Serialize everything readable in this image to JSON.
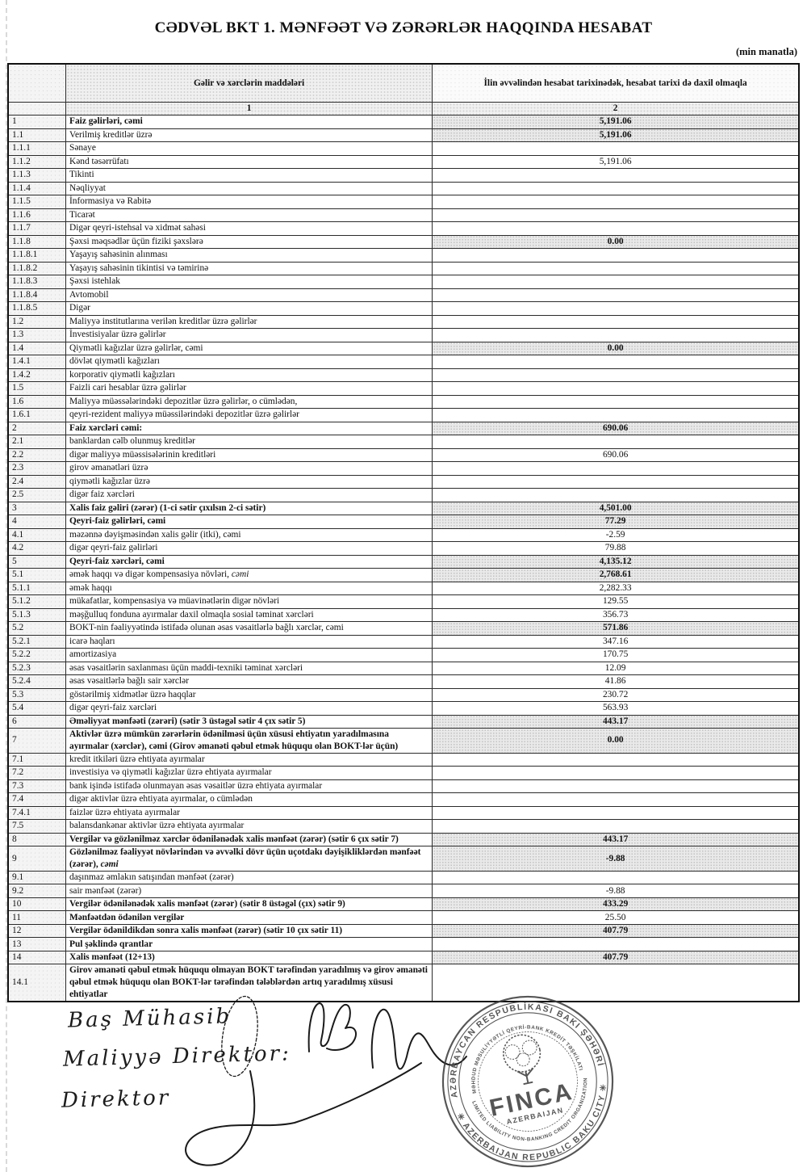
{
  "page": {
    "title": "CƏDVƏL BKT 1. MƏNFƏƏT VƏ ZƏRƏRLƏR HAQQINDA HESABAT",
    "unit_note": "(min manatla)"
  },
  "table": {
    "col1_header": "Gəlir və xərclərin maddələri",
    "col2_header": "İlin əvvəlindən hesabat tarixinədək, hesabat tarixi də daxil olmaqla",
    "col1_index": "1",
    "col2_index": "2",
    "rows": [
      {
        "num": "1",
        "label": "Faiz gəlirləri, cəmi",
        "value": "5,191.06",
        "b": true,
        "sh": true
      },
      {
        "num": "1.1",
        "label": "Verilmiş kreditlər üzrə",
        "value": "5,191.06",
        "sh": true
      },
      {
        "num": "1.1.1",
        "label": "Sənaye",
        "value": ""
      },
      {
        "num": "1.1.2",
        "label": "Kənd təsərrüfatı",
        "value": "5,191.06"
      },
      {
        "num": "1.1.3",
        "label": "Tikinti",
        "value": ""
      },
      {
        "num": "1.1.4",
        "label": "Nəqliyyat",
        "value": ""
      },
      {
        "num": "1.1.5",
        "label": "İnformasiya və Rabitə",
        "value": ""
      },
      {
        "num": "1.1.6",
        "label": "Ticarət",
        "value": ""
      },
      {
        "num": "1.1.7",
        "label": "Digər qeyri-istehsal və xidmət sahəsi",
        "value": ""
      },
      {
        "num": "1.1.8",
        "label": "Şəxsi məqsədlər üçün fiziki şəxslərə",
        "value": "0.00",
        "sh": true
      },
      {
        "num": "1.1.8.1",
        "label": "Yaşayış sahəsinin alınması",
        "value": ""
      },
      {
        "num": "1.1.8.2",
        "label": "Yaşayış sahəsinin tikintisi və təmirinə",
        "value": ""
      },
      {
        "num": "1.1.8.3",
        "label": "Şəxsi istehlak",
        "value": ""
      },
      {
        "num": "1.1.8.4",
        "label": "Avtomobil",
        "value": ""
      },
      {
        "num": "1.1.8.5",
        "label": "Digər",
        "value": ""
      },
      {
        "num": "1.2",
        "label": "Maliyyə institutlarına verilən kreditlər üzrə gəlirlər",
        "value": ""
      },
      {
        "num": "1.3",
        "label": "İnvestisiyalar üzrə gəlirlər",
        "value": ""
      },
      {
        "num": "1.4",
        "label": "Qiymətli kağızlar üzrə gəlirlər, cəmi",
        "value": "0.00",
        "sh": true
      },
      {
        "num": "1.4.1",
        "label": "dövlət qiymətli kağızları",
        "value": ""
      },
      {
        "num": "1.4.2",
        "label": "korporativ qiymətli kağızları",
        "value": ""
      },
      {
        "num": "1.5",
        "label": "Faizli cari hesablar üzrə gəlirlər",
        "value": ""
      },
      {
        "num": "1.6",
        "label": "Maliyyə müəssələrindəki depozitlər üzrə gəlirlər, o cümlədən,",
        "value": ""
      },
      {
        "num": "1.6.1",
        "label": "qeyri-rezident maliyyə müəssilərindəki depozitlər üzrə gəlirlər",
        "value": ""
      },
      {
        "num": "2",
        "label": "Faiz xərcləri cəmi:",
        "value": "690.06",
        "b": true,
        "sh": true
      },
      {
        "num": "2.1",
        "label": "banklardan cəlb olunmuş kreditlər",
        "value": ""
      },
      {
        "num": "2.2",
        "label": "digər maliyyə müəssisələrinin kreditləri",
        "value": "690.06"
      },
      {
        "num": "2.3",
        "label": "girov əmanətləri üzrə",
        "value": ""
      },
      {
        "num": "2.4",
        "label": "qiymətli kağızlar üzrə",
        "value": ""
      },
      {
        "num": "2.5",
        "label": "digər faiz xərcləri",
        "value": ""
      },
      {
        "num": "3",
        "label": "Xalis faiz gəliri (zərər) (1-ci sətir çıxılsın 2-ci sətir)",
        "value": "4,501.00",
        "b": true,
        "sh": true
      },
      {
        "num": "4",
        "label": "Qeyri-faiz gəlirləri, cəmi",
        "value": "77.29",
        "b": true,
        "sh": true
      },
      {
        "num": "4.1",
        "label": "məzənnə dəyişməsindən xalis gəlir (itki), cəmi",
        "value": "-2.59"
      },
      {
        "num": "4.2",
        "label": "digər qeyri-faiz gəlirləri",
        "value": "79.88"
      },
      {
        "num": "5",
        "label": "Qeyri-faiz xərcləri, cəmi",
        "value": "4,135.12",
        "b": true,
        "sh": true
      },
      {
        "num": "5.1",
        "label": "əmək haqqı və digər kompensasiya növləri, ",
        "em": "cəmi",
        "value": "2,768.61",
        "sh": true
      },
      {
        "num": "5.1.1",
        "label": "əmək haqqı",
        "value": "2,282.33"
      },
      {
        "num": "5.1.2",
        "label": "mükafatlar, kompensasiya və müavinətlərin digər növləri",
        "value": "129.55"
      },
      {
        "num": "5.1.3",
        "label": "məşğulluq fonduna ayırmalar daxil olmaqla sosial təminat xərcləri",
        "value": "356.73"
      },
      {
        "num": "5.2",
        "label": "BOKT-nin fəaliyyətində istifadə olunan əsas vəsaitlərlə bağlı xərclər, cəmi",
        "value": "571.86",
        "sh": true
      },
      {
        "num": "5.2.1",
        "label": "icarə haqları",
        "value": "347.16"
      },
      {
        "num": "5.2.2",
        "label": "amortizasiya",
        "value": "170.75"
      },
      {
        "num": "5.2.3",
        "label": "əsas vəsaitlərin saxlanması üçün maddi-texniki təminat xərcləri",
        "value": "12.09"
      },
      {
        "num": "5.2.4",
        "label": "əsas vəsaitlərlə bağlı sair xərclər",
        "value": "41.86"
      },
      {
        "num": "5.3",
        "label": "göstərilmiş xidmətlər üzrə haqqlar",
        "value": "230.72"
      },
      {
        "num": "5.4",
        "label": "digər qeyri-faiz xərcləri",
        "value": "563.93"
      },
      {
        "num": "6",
        "label": "Əməliyyat mənfəəti (zərəri) (sətir 3 üstəgəl sətir 4 çıx sətir 5)",
        "value": "443.17",
        "b": true,
        "sh": true
      },
      {
        "num": "7",
        "label": "Aktivlər üzrə mümkün zərərlərin ödənilməsi üçün xüsusi ehtiyatın yaradılmasına ayırmalar (xərclər), cəmi (Girov əmanəti qəbul etmək hüququ olan BOKT-lər üçün)",
        "value": "0.00",
        "b": true,
        "sh": true
      },
      {
        "num": "7.1",
        "label": "kredit itkiləri üzrə ehtiyata ayırmalar",
        "value": ""
      },
      {
        "num": "7.2",
        "label": "investisiya və qiymətli kağızlar üzrə ehtiyata ayırmalar",
        "value": ""
      },
      {
        "num": "7.3",
        "label": "bank işində istifadə olunmayan əsas vəsaitlər üzrə ehtiyata ayırmalar",
        "value": ""
      },
      {
        "num": "7.4",
        "label": "digər aktivlər üzrə ehtiyata ayırmalar, o cümlədən",
        "value": ""
      },
      {
        "num": "7.4.1",
        "label": "faizlər üzrə ehtiyata ayırmalar",
        "value": ""
      },
      {
        "num": "7.5",
        "label": "balansdankənar aktivlər üzrə ehtiyata ayırmalar",
        "value": ""
      },
      {
        "num": "8",
        "label": "Vergilər və gözlənilməz xərclər ödənilənədək xalis mənfəət (zərər) (sətir 6 çıx sətir 7)",
        "value": "443.17",
        "b": true,
        "sh": true
      },
      {
        "num": "9",
        "label": "Gözlənilməz fəaliyyət növlərindən və əvvəlki dövr üçün uçotdakı dəyişikliklərdən mənfəət (zərər), ",
        "em": "cəmi",
        "value": "-9.88",
        "b": true,
        "sh": true
      },
      {
        "num": "9.1",
        "label": "daşınmaz əmlakın satışından mənfəət (zərər)",
        "value": ""
      },
      {
        "num": "9.2",
        "label": "sair mənfəət (zərər)",
        "value": "-9.88"
      },
      {
        "num": "10",
        "label": "Vergilər ödənilənədək xalis mənfəət (zərər) (sətir 8 üstəgəl (çıx) sətir 9)",
        "value": "433.29",
        "b": true,
        "sh": true
      },
      {
        "num": "11",
        "label": "Mənfəətdən ödənilən vergilər",
        "value": "25.50",
        "b": true
      },
      {
        "num": "12",
        "label": "Vergilər ödənildikdən sonra xalis mənfəət (zərər) (sətir 10 çıx sətir 11)",
        "value": "407.79",
        "b": true,
        "sh": true
      },
      {
        "num": "13",
        "label": "Pul şəklində qrantlar",
        "value": "",
        "b": true
      },
      {
        "num": "14",
        "label": "Xalis mənfəət  (12+13)",
        "value": "407.79",
        "b": true,
        "sh": true
      },
      {
        "num": "14.1",
        "label": "Girov əmanəti qəbul etmək hüququ olmayan BOKT tərəfindən yaradılmış və girov əmanəti qəbul etmək hüququ olan BOKT-lər tərəfindən tələblərdən artıq yaradılmış xüsusi ehtiyatlar",
        "value": "",
        "b": true
      }
    ]
  },
  "signatures": {
    "line1": "Baş Mühasib",
    "line2": "Maliyyə Direktor:",
    "line3": "Direktor"
  },
  "stamp": {
    "outer_top": "AZƏRBAYCAN RESPUBLİKASI BAKI ŞƏHƏRİ",
    "outer_bottom": "✳ AZERBAIJAN REPUBLIC BAKU CITY ✳",
    "inner_top": "MƏHDUD MƏSULİYYƏTLİ QEYRİ-BANK KREDİT TƏŞKİLATI",
    "inner_bottom": "LIMITED LIABILITY NON-BANKING CREDIT ORGANIZATION",
    "center_name": "FINCA",
    "center_sub": "AZERBAIJAN",
    "ink_color": "#3f3f3f"
  }
}
